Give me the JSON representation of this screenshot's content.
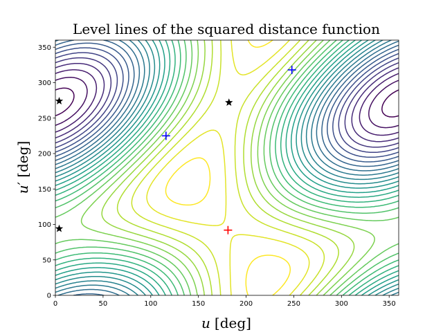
{
  "chart_data": {
    "type": "contour",
    "title": "Level lines of the squared distance function",
    "xlabel": {
      "var": "u",
      "unit": "[deg]"
    },
    "ylabel": {
      "var": "u",
      "prime": "′",
      "unit": "[deg]"
    },
    "xlim": [
      0,
      360
    ],
    "ylim": [
      0,
      360
    ],
    "xticks": [
      "0",
      "50",
      "100",
      "150",
      "200",
      "250",
      "300",
      "350"
    ],
    "yticks": [
      "0",
      "50",
      "100",
      "150",
      "200",
      "250",
      "300",
      "350"
    ],
    "colormap": "viridis",
    "grid": false,
    "legend": "none",
    "global_minimum": {
      "x": 181,
      "y": 92,
      "marker": "+",
      "color": "#ff0000"
    },
    "saddle_points": [
      {
        "x": 116,
        "y": 225,
        "marker": "+",
        "color": "#0000ff"
      },
      {
        "x": 248,
        "y": 318,
        "marker": "+",
        "color": "#0000ff"
      }
    ],
    "star_points": [
      {
        "x": 4,
        "y": 274,
        "marker": "star",
        "color": "#000000"
      },
      {
        "x": 4,
        "y": 94,
        "marker": "star",
        "color": "#000000"
      },
      {
        "x": 182,
        "y": 272,
        "marker": "star",
        "color": "#000000"
      }
    ]
  }
}
